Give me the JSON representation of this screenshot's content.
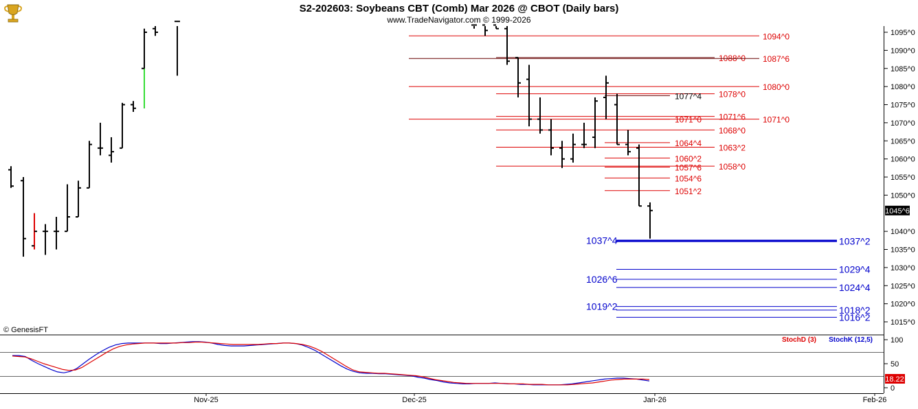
{
  "header": {
    "title": "S2-202603:  Soybeans CBT (Comb) Mar 2026 @ CBOT  (Daily bars)",
    "subtitle": "www.TradeNavigator.com © 1999-2026"
  },
  "copyright": "© GenesisFT",
  "logo_icon": "trophy-icon",
  "colors": {
    "bar": "#000000",
    "bar_up_highlight": "#33dd33",
    "bar_down_highlight": "#dd0000",
    "resistance": "#dd0000",
    "support": "#0000cc",
    "stoch_d": "#dd0000",
    "stoch_k": "#0000cc",
    "last_price_bg": "#000000",
    "stoch_value_bg": "#dd0000"
  },
  "indicator": {
    "stoch_d_label": "StochD (3)",
    "stoch_k_label": "StochK (12,5)",
    "last_value_label": "18.22",
    "ylim": [
      0,
      100
    ],
    "ticks": [
      "100",
      "50",
      "0"
    ],
    "ref_levels": [
      80,
      20
    ]
  },
  "price_axis": {
    "last_price_label": "1045^6",
    "ticks": [
      "1095^0",
      "1090^0",
      "1085^0",
      "1080^0",
      "1075^0",
      "1070^0",
      "1065^0",
      "1060^0",
      "1055^0",
      "1050^0",
      "1040^0",
      "1035^0",
      "1030^0",
      "1025^0",
      "1020^0",
      "1015^0"
    ]
  },
  "time_axis": {
    "labels": [
      "Nov-25",
      "Dec-25",
      "Jan-26",
      "Feb-26"
    ]
  },
  "chart_data": {
    "type": "ohlc",
    "ylim": [
      1011,
      1098
    ],
    "last_price": 1045.75,
    "bars": [
      {
        "o": 1057.0,
        "h": 1058.0,
        "l": 1052.0,
        "c": 1052.5
      },
      {
        "o": 1054.0,
        "h": 1055.0,
        "l": 1033.0,
        "c": 1038.0
      },
      {
        "o": 1036.0,
        "h": 1045.0,
        "l": 1035.0,
        "c": 1040.0,
        "color": "down"
      },
      {
        "o": 1040.0,
        "h": 1042.0,
        "l": 1033.5,
        "c": 1040.0
      },
      {
        "o": 1040.0,
        "h": 1044.0,
        "l": 1035.0,
        "c": 1040.0
      },
      {
        "o": 1040.0,
        "h": 1053.0,
        "l": 1040.0,
        "c": 1044.0
      },
      {
        "o": 1044.0,
        "h": 1054.0,
        "l": 1044.0,
        "c": 1052.0
      },
      {
        "o": 1052.0,
        "h": 1065.0,
        "l": 1052.0,
        "c": 1064.0
      },
      {
        "o": 1063.0,
        "h": 1070.0,
        "l": 1061.0,
        "c": 1063.0
      },
      {
        "o": 1061.0,
        "h": 1066.0,
        "l": 1059.0,
        "c": 1062.0
      },
      {
        "o": 1063.0,
        "h": 1075.5,
        "l": 1063.0,
        "c": 1075.0
      },
      {
        "o": 1075.0,
        "h": 1076.0,
        "l": 1073.0,
        "c": 1074.0
      },
      {
        "o": 1085.0,
        "h": 1096.0,
        "l": 1074.0,
        "c": 1095.0,
        "color": "up"
      },
      {
        "o": 1096.0,
        "h": 1098.0,
        "l": 1094.0,
        "c": 1095.0
      },
      {
        "o": 1098.0,
        "h": 1098.0,
        "l": 1083.0,
        "c": 1098.0
      },
      {
        "o": 1097.0,
        "h": 1098.0,
        "l": 1096.0,
        "c": 1097.0
      },
      {
        "o": 1097.0,
        "h": 1098.0,
        "l": 1094.0,
        "c": 1095.5
      },
      {
        "o": 1097.0,
        "h": 1098.0,
        "l": 1096.0,
        "c": 1096.0
      },
      {
        "o": 1096.0,
        "h": 1098.0,
        "l": 1086.0,
        "c": 1087.0
      },
      {
        "o": 1088.0,
        "h": 1088.0,
        "l": 1077.0,
        "c": 1081.0
      },
      {
        "o": 1082.0,
        "h": 1086.0,
        "l": 1069.0,
        "c": 1071.0
      },
      {
        "o": 1071.0,
        "h": 1077.0,
        "l": 1067.0,
        "c": 1068.0
      },
      {
        "o": 1068.0,
        "h": 1071.0,
        "l": 1061.0,
        "c": 1063.0
      },
      {
        "o": 1063.0,
        "h": 1065.0,
        "l": 1057.5,
        "c": 1060.0
      },
      {
        "o": 1060.0,
        "h": 1067.0,
        "l": 1059.0,
        "c": 1064.0
      },
      {
        "o": 1064.0,
        "h": 1070.0,
        "l": 1063.0,
        "c": 1064.0
      },
      {
        "o": 1066.0,
        "h": 1077.0,
        "l": 1063.0,
        "c": 1076.0
      },
      {
        "o": 1077.0,
        "h": 1083.0,
        "l": 1071.0,
        "c": 1081.0
      },
      {
        "o": 1075.0,
        "h": 1078.0,
        "l": 1064.0,
        "c": 1064.0
      },
      {
        "o": 1064.0,
        "h": 1068.0,
        "l": 1061.0,
        "c": 1062.0
      },
      {
        "o": 1063.0,
        "h": 1064.0,
        "l": 1047.0,
        "c": 1047.0
      },
      {
        "o": 1047.0,
        "h": 1048.0,
        "l": 1038.0,
        "c": 1045.75
      }
    ],
    "levels": [
      {
        "value": 1094.0,
        "label": "1094^0",
        "label_side": "right",
        "kind": "resistance"
      },
      {
        "value": 1088.0,
        "label": "1088^0",
        "label_side": "mid",
        "kind": "resistance"
      },
      {
        "value": 1087.75,
        "label": "1087^6",
        "label_side": "right",
        "kind": "resistance"
      },
      {
        "value": 1080.0,
        "label": "1080^0",
        "label_side": "right",
        "kind": "resistance"
      },
      {
        "value": 1078.0,
        "label": "1078^0",
        "label_side": "mid",
        "kind": "resistance"
      },
      {
        "value": 1077.5,
        "label": "1077^4",
        "label_side": "left",
        "kind": "resistance"
      },
      {
        "value": 1071.75,
        "label": "1071^6",
        "label_side": "mid",
        "kind": "resistance"
      },
      {
        "value": 1071.0,
        "label": "1071^0",
        "label_side": "left",
        "kind": "resistance"
      },
      {
        "value": 1071.0,
        "label": "1071^0",
        "label_side": "right",
        "kind": "resistance"
      },
      {
        "value": 1068.0,
        "label": "1068^0",
        "label_side": "mid",
        "kind": "resistance"
      },
      {
        "value": 1064.5,
        "label": "1064^4",
        "label_side": "left",
        "kind": "resistance"
      },
      {
        "value": 1063.25,
        "label": "1063^2",
        "label_side": "mid",
        "kind": "resistance"
      },
      {
        "value": 1060.25,
        "label": "1060^2",
        "label_side": "left",
        "kind": "resistance"
      },
      {
        "value": 1057.75,
        "label": "1057^6",
        "label_side": "left",
        "kind": "resistance"
      },
      {
        "value": 1058.0,
        "label": "1058^0",
        "label_side": "mid",
        "kind": "resistance"
      },
      {
        "value": 1054.75,
        "label": "1054^6",
        "label_side": "left",
        "kind": "resistance"
      },
      {
        "value": 1051.25,
        "label": "1051^2",
        "label_side": "left",
        "kind": "resistance"
      },
      {
        "value": 1037.5,
        "label": "1037^4",
        "label_side": "left",
        "kind": "support"
      },
      {
        "value": 1037.25,
        "label": "1037^2",
        "label_side": "right",
        "kind": "support"
      },
      {
        "value": 1029.5,
        "label": "1029^4",
        "label_side": "right",
        "kind": "support"
      },
      {
        "value": 1026.75,
        "label": "1026^6",
        "label_side": "left",
        "kind": "support"
      },
      {
        "value": 1024.5,
        "label": "1024^4",
        "label_side": "right",
        "kind": "support"
      },
      {
        "value": 1019.25,
        "label": "1019^2",
        "label_side": "left",
        "kind": "support"
      },
      {
        "value": 1018.25,
        "label": "1018^2",
        "label_side": "right",
        "kind": "support"
      },
      {
        "value": 1016.25,
        "label": "1016^2",
        "label_side": "right",
        "kind": "support"
      }
    ],
    "stochastic": {
      "d": [
        66,
        65,
        64,
        60,
        55,
        50,
        46,
        42,
        38,
        36,
        37,
        42,
        50,
        58,
        66,
        74,
        81,
        86,
        89,
        91,
        92,
        93,
        93,
        93,
        93,
        93,
        93,
        94,
        94,
        95,
        95,
        94,
        93,
        92,
        91,
        90,
        90,
        90,
        90,
        90,
        91,
        92,
        92,
        93,
        93,
        92,
        90,
        87,
        82,
        76,
        68,
        60,
        52,
        44,
        37,
        33,
        32,
        31,
        30,
        30,
        29,
        28,
        27,
        26,
        25,
        23,
        20,
        17,
        15,
        13,
        11,
        10,
        9,
        9,
        9,
        9,
        9,
        9,
        9,
        8,
        8,
        8,
        7,
        7,
        7,
        6,
        6,
        6,
        6,
        7,
        8,
        9,
        10,
        12,
        14,
        16,
        17,
        18,
        18,
        18,
        18,
        17
      ],
      "k": [
        67,
        67,
        65,
        57,
        50,
        44,
        38,
        33,
        31,
        34,
        40,
        50,
        60,
        69,
        77,
        84,
        89,
        92,
        93,
        93,
        93,
        93,
        93,
        92,
        92,
        93,
        94,
        95,
        96,
        96,
        95,
        93,
        90,
        88,
        87,
        87,
        87,
        88,
        89,
        90,
        91,
        92,
        93,
        93,
        92,
        89,
        84,
        78,
        70,
        62,
        54,
        46,
        39,
        34,
        31,
        30,
        30,
        29,
        29,
        28,
        27,
        26,
        25,
        22,
        20,
        17,
        15,
        12,
        10,
        9,
        8,
        8,
        9,
        9,
        9,
        10,
        9,
        8,
        8,
        7,
        7,
        6,
        6,
        6,
        6,
        6,
        7,
        8,
        10,
        12,
        14,
        16,
        18,
        19,
        20,
        20,
        19,
        18,
        16,
        14
      ]
    }
  }
}
